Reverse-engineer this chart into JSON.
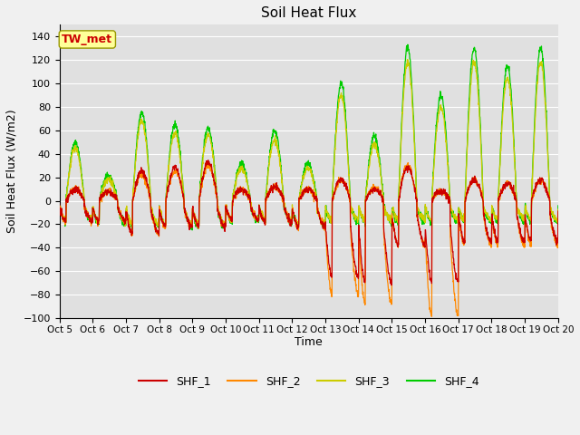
{
  "title": "Soil Heat Flux",
  "ylabel": "Soil Heat Flux (W/m2)",
  "xlabel": "Time",
  "ylim": [
    -100,
    150
  ],
  "yticks": [
    -100,
    -80,
    -60,
    -40,
    -20,
    0,
    20,
    40,
    60,
    80,
    100,
    120,
    140
  ],
  "annotation": "TW_met",
  "legend_labels": [
    "SHF_1",
    "SHF_2",
    "SHF_3",
    "SHF_4"
  ],
  "colors": [
    "#cc0000",
    "#ff8800",
    "#cccc00",
    "#00cc00"
  ],
  "fig_bg": "#f0f0f0",
  "plot_bg": "#e0e0e0",
  "n_days": 15,
  "start_day": 5,
  "n_points_per_day": 144
}
